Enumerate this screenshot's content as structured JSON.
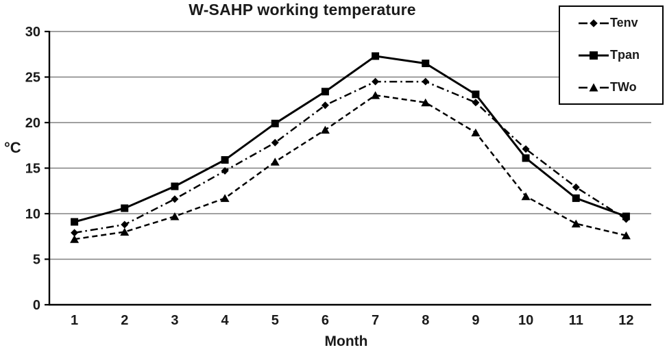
{
  "chart": {
    "title": "W-SAHP working temperature",
    "ylabel": "°C",
    "xlabel": "Month"
  },
  "legend": {
    "items": [
      {
        "label": "Tenv"
      },
      {
        "label": "Tpan"
      },
      {
        "label": "TWo"
      }
    ]
  },
  "chart_data": {
    "type": "line",
    "title": "W-SAHP working temperature",
    "xlabel": "Month",
    "ylabel": "°C",
    "ylim": [
      0,
      30
    ],
    "yticks": [
      0,
      5,
      10,
      15,
      20,
      25,
      30
    ],
    "categories": [
      1,
      2,
      3,
      4,
      5,
      6,
      7,
      8,
      9,
      10,
      11,
      12
    ],
    "grid": true,
    "legend_position": "top-right",
    "series": [
      {
        "name": "Tenv",
        "marker": "diamond",
        "line_style": "dash-dot",
        "values": [
          7.9,
          8.8,
          11.6,
          14.7,
          17.8,
          21.9,
          24.5,
          24.5,
          22.2,
          17.1,
          12.9,
          9.4
        ]
      },
      {
        "name": "Tpan",
        "marker": "square",
        "line_style": "solid",
        "values": [
          9.1,
          10.6,
          13.0,
          15.9,
          19.9,
          23.4,
          27.3,
          26.5,
          23.1,
          16.1,
          11.7,
          9.7
        ]
      },
      {
        "name": "TWo",
        "marker": "triangle",
        "line_style": "dashed",
        "values": [
          7.2,
          8.0,
          9.7,
          11.7,
          15.7,
          19.2,
          23.0,
          22.2,
          18.9,
          11.9,
          8.9,
          7.6
        ]
      }
    ],
    "colors": {
      "line": "#000000",
      "grid": "#808080",
      "background": "#ffffff"
    }
  }
}
